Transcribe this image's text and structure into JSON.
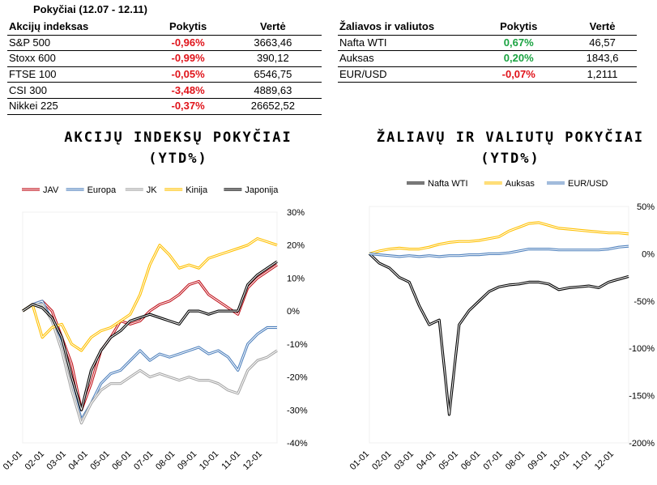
{
  "header": {
    "title": "Pokyčiai (12.07 - 12.11)"
  },
  "left_table": {
    "columns": [
      "Akcijų indeksas",
      "Pokytis",
      "Vertė"
    ],
    "rows": [
      {
        "name": "S&P 500",
        "change": "-0,96%",
        "value": "3663,46",
        "sign": "neg"
      },
      {
        "name": "Stoxx 600",
        "change": "-0,99%",
        "value": "390,12",
        "sign": "neg"
      },
      {
        "name": "FTSE 100",
        "change": "-0,05%",
        "value": "6546,75",
        "sign": "neg"
      },
      {
        "name": "CSI 300",
        "change": "-3,48%",
        "value": "4889,63",
        "sign": "neg"
      },
      {
        "name": "Nikkei 225",
        "change": "-0,37%",
        "value": "26652,52",
        "sign": "neg"
      }
    ]
  },
  "right_table": {
    "columns": [
      "Žaliavos ir valiutos",
      "Pokytis",
      "Vertė"
    ],
    "rows": [
      {
        "name": "Nafta WTI",
        "change": "0,67%",
        "value": "46,57",
        "sign": "pos"
      },
      {
        "name": "Auksas",
        "change": "0,20%",
        "value": "1843,6",
        "sign": "pos"
      },
      {
        "name": "EUR/USD",
        "change": "-0,07%",
        "value": "1,2111",
        "sign": "neg"
      }
    ]
  },
  "colors": {
    "negative": "#e0131a",
    "positive": "#1aa341"
  },
  "chart_data": [
    {
      "type": "line",
      "title": "AKCIJŲ INDEKSŲ POKYČIAI",
      "subtitle": "(YTD%)",
      "x": [
        "01-01",
        "01-15",
        "02-01",
        "02-15",
        "03-01",
        "03-10",
        "03-23",
        "04-01",
        "04-15",
        "05-01",
        "05-15",
        "06-01",
        "06-15",
        "07-01",
        "07-10",
        "07-20",
        "08-01",
        "08-15",
        "09-01",
        "09-15",
        "10-01",
        "10-15",
        "11-01",
        "11-10",
        "11-20",
        "12-01",
        "12-11"
      ],
      "xticks": [
        "01-01",
        "02-01",
        "03-01",
        "04-01",
        "05-01",
        "06-01",
        "07-01",
        "08-01",
        "09-01",
        "10-01",
        "11-01",
        "12-01"
      ],
      "ylim": [
        -40,
        30
      ],
      "yticks": [
        30,
        20,
        10,
        0,
        -10,
        -20,
        -30,
        -40
      ],
      "ytick_labels": [
        "30%",
        "20%",
        "10%",
        "0%",
        "-10%",
        "-20%",
        "-30%",
        "-40%"
      ],
      "legend_position": "top",
      "grid": false,
      "series": [
        {
          "name": "JAV",
          "color": "#c0131c",
          "values": [
            0,
            2,
            3,
            0,
            -8,
            -16,
            -30,
            -22,
            -12,
            -8,
            -3,
            -4,
            -3,
            0,
            2,
            3,
            5,
            8,
            9,
            5,
            3,
            1,
            -1,
            7,
            10,
            12,
            14
          ]
        },
        {
          "name": "Europa",
          "color": "#4f81bd",
          "values": [
            0,
            2,
            3,
            -3,
            -10,
            -22,
            -33,
            -28,
            -22,
            -19,
            -18,
            -15,
            -12,
            -15,
            -13,
            -14,
            -13,
            -12,
            -11,
            -13,
            -12,
            -14,
            -18,
            -10,
            -7,
            -5,
            -5
          ]
        },
        {
          "name": "JK",
          "color": "#a5a5a5",
          "values": [
            0,
            2,
            2,
            -3,
            -12,
            -24,
            -34,
            -28,
            -24,
            -22,
            -22,
            -20,
            -18,
            -20,
            -19,
            -20,
            -21,
            -20,
            -21,
            -21,
            -22,
            -24,
            -25,
            -18,
            -15,
            -14,
            -12
          ]
        },
        {
          "name": "Kinija",
          "color": "#ffc000",
          "values": [
            0,
            2,
            -8,
            -5,
            -4,
            -10,
            -12,
            -8,
            -6,
            -5,
            -3,
            -1,
            5,
            14,
            20,
            17,
            13,
            14,
            13,
            16,
            17,
            18,
            19,
            20,
            22,
            21,
            20
          ]
        },
        {
          "name": "Japonija",
          "color": "#000000",
          "values": [
            0,
            2,
            1,
            -2,
            -8,
            -20,
            -30,
            -18,
            -12,
            -8,
            -6,
            -3,
            -2,
            -1,
            -2,
            -3,
            -4,
            0,
            0,
            -1,
            0,
            0,
            0,
            8,
            11,
            13,
            15
          ]
        }
      ]
    },
    {
      "type": "line",
      "title": "ŽALIAVŲ IR VALIUTŲ POKYČIAI",
      "subtitle": "(YTD%)",
      "x": [
        "01-01",
        "01-15",
        "02-01",
        "02-15",
        "03-01",
        "03-15",
        "04-01",
        "04-15",
        "04-20",
        "04-22",
        "05-01",
        "05-15",
        "06-01",
        "06-15",
        "07-01",
        "07-15",
        "08-01",
        "08-10",
        "08-15",
        "09-01",
        "09-15",
        "10-01",
        "10-15",
        "11-01",
        "11-15",
        "12-01",
        "12-11"
      ],
      "xticks": [
        "01-01",
        "02-01",
        "03-01",
        "04-01",
        "05-01",
        "06-01",
        "07-01",
        "08-01",
        "09-01",
        "10-01",
        "11-01",
        "12-01"
      ],
      "ylim": [
        -200,
        50
      ],
      "yticks": [
        50,
        0,
        -50,
        -100,
        -150,
        -200
      ],
      "ytick_labels": [
        "50%",
        "0%",
        "-50%",
        "-100%",
        "-150%",
        "-200%"
      ],
      "legend_position": "top",
      "grid": false,
      "series": [
        {
          "name": "Nafta WTI",
          "color": "#000000",
          "values": [
            0,
            -10,
            -15,
            -25,
            -30,
            -55,
            -75,
            -70,
            -170,
            -75,
            -60,
            -50,
            -40,
            -35,
            -33,
            -32,
            -30,
            -30,
            -32,
            -38,
            -36,
            -35,
            -34,
            -36,
            -30,
            -27,
            -24
          ]
        },
        {
          "name": "Auksas",
          "color": "#ffc000",
          "values": [
            0,
            3,
            5,
            6,
            5,
            5,
            7,
            10,
            12,
            13,
            13,
            14,
            16,
            18,
            24,
            28,
            32,
            33,
            30,
            27,
            26,
            25,
            24,
            23,
            22,
            22,
            21
          ]
        },
        {
          "name": "EUR/USD",
          "color": "#4f81bd",
          "values": [
            0,
            -1,
            -2,
            -3,
            -2,
            -3,
            -2,
            -3,
            -2,
            -2,
            -1,
            -1,
            0,
            0,
            1,
            3,
            5,
            5,
            5,
            4,
            4,
            4,
            4,
            4,
            5,
            7,
            8
          ]
        }
      ]
    }
  ]
}
